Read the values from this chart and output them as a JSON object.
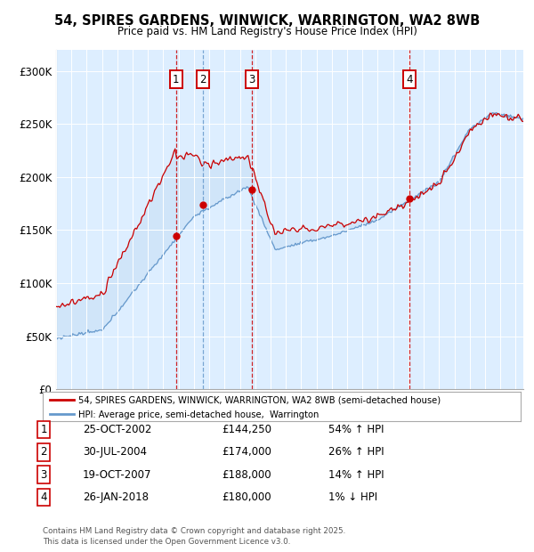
{
  "title1": "54, SPIRES GARDENS, WINWICK, WARRINGTON, WA2 8WB",
  "title2": "Price paid vs. HM Land Registry's House Price Index (HPI)",
  "yticks": [
    0,
    50000,
    100000,
    150000,
    200000,
    250000,
    300000
  ],
  "ytick_labels": [
    "£0",
    "£50K",
    "£100K",
    "£150K",
    "£200K",
    "£250K",
    "£300K"
  ],
  "xlim_start": 1995.0,
  "xlim_end": 2025.5,
  "ylim": [
    0,
    320000
  ],
  "bg_color": "#ddeeff",
  "transactions": [
    {
      "num": 1,
      "date_num": 2002.82,
      "price": 144250,
      "date_str": "25-OCT-2002",
      "pct": "54%",
      "dir": "↑",
      "vline_color": "#cc0000"
    },
    {
      "num": 2,
      "date_num": 2004.58,
      "price": 174000,
      "date_str": "30-JUL-2004",
      "pct": "26%",
      "dir": "↑",
      "vline_color": "#6699cc"
    },
    {
      "num": 3,
      "date_num": 2007.8,
      "price": 188000,
      "date_str": "19-OCT-2007",
      "pct": "14%",
      "dir": "↑",
      "vline_color": "#cc0000"
    },
    {
      "num": 4,
      "date_num": 2018.07,
      "price": 180000,
      "date_str": "26-JAN-2018",
      "pct": "1%",
      "dir": "↓",
      "vline_color": "#cc0000"
    }
  ],
  "hpi_color": "#6699cc",
  "price_color": "#cc0000",
  "legend_label_price": "54, SPIRES GARDENS, WINWICK, WARRINGTON, WA2 8WB (semi-detached house)",
  "legend_label_hpi": "HPI: Average price, semi-detached house,  Warrington",
  "footer": "Contains HM Land Registry data © Crown copyright and database right 2025.\nThis data is licensed under the Open Government Licence v3.0.",
  "table": [
    {
      "num": "1",
      "date": "25-OCT-2002",
      "price": "£144,250",
      "pct": "54% ↑ HPI"
    },
    {
      "num": "2",
      "date": "30-JUL-2004",
      "price": "£174,000",
      "pct": "26% ↑ HPI"
    },
    {
      "num": "3",
      "date": "19-OCT-2007",
      "price": "£188,000",
      "pct": "14% ↑ HPI"
    },
    {
      "num": "4",
      "date": "26-JAN-2018",
      "price": "£180,000",
      "pct": "1% ↓ HPI"
    }
  ]
}
